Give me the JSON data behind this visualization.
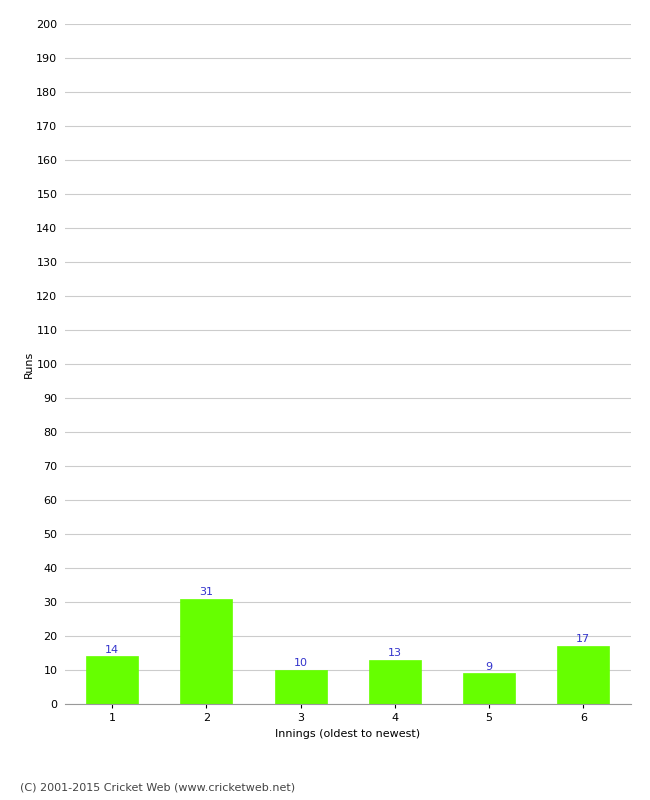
{
  "categories": [
    "1",
    "2",
    "3",
    "4",
    "5",
    "6"
  ],
  "values": [
    14,
    31,
    10,
    13,
    9,
    17
  ],
  "bar_color": "#66ff00",
  "bar_edge_color": "#66ff00",
  "label_color": "#3333cc",
  "ylabel": "Runs",
  "xlabel": "Innings (oldest to newest)",
  "ylim": [
    0,
    200
  ],
  "yticks": [
    0,
    10,
    20,
    30,
    40,
    50,
    60,
    70,
    80,
    90,
    100,
    110,
    120,
    130,
    140,
    150,
    160,
    170,
    180,
    190,
    200
  ],
  "background_color": "#ffffff",
  "grid_color": "#cccccc",
  "footer_text": "(C) 2001-2015 Cricket Web (www.cricketweb.net)",
  "label_fontsize": 8,
  "axis_label_fontsize": 8,
  "tick_fontsize": 8,
  "footer_fontsize": 8
}
